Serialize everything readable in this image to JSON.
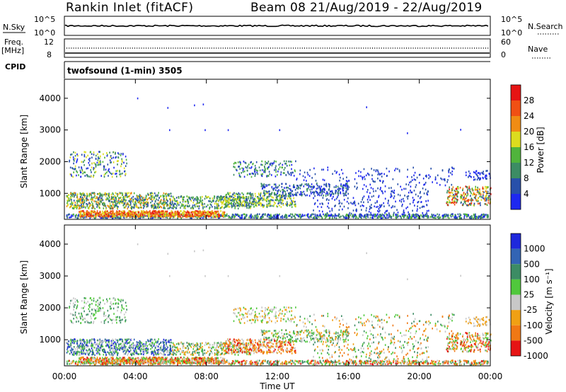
{
  "header": {
    "title": "Rankin Inlet (fitACF)",
    "beam_dates": "Beam 08  21/Aug/2019 - 22/Aug/2019"
  },
  "top_panels": {
    "nsky": {
      "label": "N.Sky",
      "left_ticks": [
        "10^5",
        "10^0"
      ],
      "right_ticks": [
        "10^5",
        "10^0"
      ],
      "right_label": "N.Search"
    },
    "freq": {
      "label_line1": "Freq.",
      "label_line2": "[MHz]",
      "left_ticks": [
        "12",
        "8"
      ],
      "right_ticks": [
        "60",
        "0"
      ],
      "right_label": "Nave"
    },
    "cpid": {
      "label": "CPID",
      "mode_text": "twofsound (1-min) 3505"
    }
  },
  "chart_data": [
    {
      "type": "heatmap",
      "name": "Power",
      "ylabel": "Slant Range [km]",
      "yticks": [
        1000,
        2000,
        3000,
        4000
      ],
      "ylim": [
        180,
        4600
      ],
      "xlim_hours": [
        0,
        24
      ],
      "colorbar": {
        "label": "Power [dB]",
        "ticks": [
          "4",
          "8",
          "12",
          "16",
          "20",
          "24",
          "28"
        ],
        "colors": [
          "#1e28f0",
          "#2850aa",
          "#3c8c64",
          "#50b43c",
          "#dcdc1e",
          "#f08c14",
          "#f05014",
          "#e61414"
        ]
      }
    },
    {
      "type": "heatmap",
      "name": "Velocity",
      "ylabel": "Slant Range [km]",
      "yticks": [
        1000,
        2000,
        3000,
        4000
      ],
      "ylim": [
        180,
        4600
      ],
      "xlim_hours": [
        0,
        24
      ],
      "xlabel": "Time UT",
      "xticks": [
        "00:00",
        "04:00",
        "08:00",
        "12:00",
        "16:00",
        "20:00",
        "00:00"
      ],
      "colorbar": {
        "label": "Velocity [m s⁻¹]",
        "ticks": [
          "1000",
          "500",
          "100",
          "25",
          "-25",
          "-100",
          "-500",
          "-1000"
        ],
        "colors": [
          "#1e28dc",
          "#3264b4",
          "#3c8c64",
          "#50c83c",
          "#c8c8c8",
          "#f0a014",
          "#f07814",
          "#e61414"
        ]
      }
    }
  ]
}
